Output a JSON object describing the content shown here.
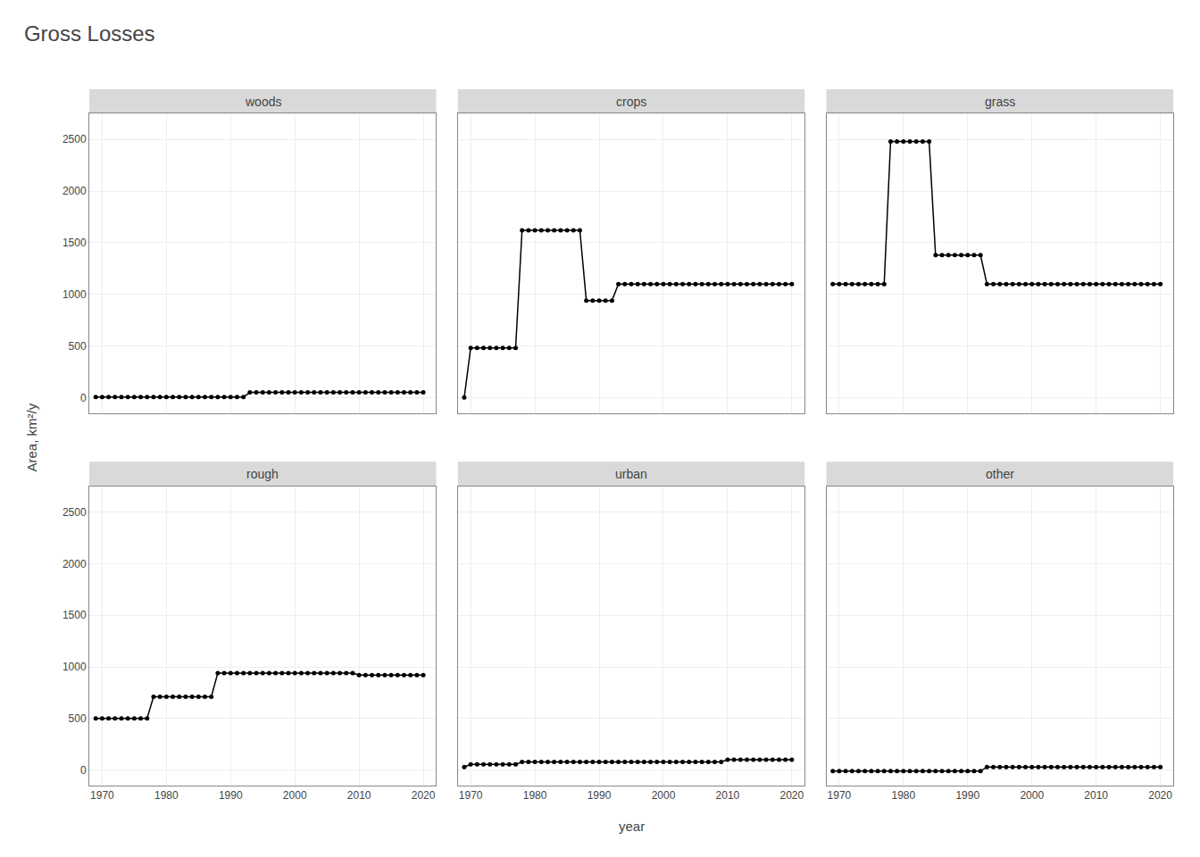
{
  "chart_data": {
    "type": "line",
    "title": "Gross Losses",
    "xlabel": "year",
    "ylabel": "Area, km²/y",
    "x": [
      1969,
      1970,
      1971,
      1972,
      1973,
      1974,
      1975,
      1976,
      1977,
      1978,
      1979,
      1980,
      1981,
      1982,
      1983,
      1984,
      1985,
      1986,
      1987,
      1988,
      1989,
      1990,
      1991,
      1992,
      1993,
      1994,
      1995,
      1996,
      1997,
      1998,
      1999,
      2000,
      2001,
      2002,
      2003,
      2004,
      2005,
      2006,
      2007,
      2008,
      2009,
      2010,
      2011,
      2012,
      2013,
      2014,
      2015,
      2016,
      2017,
      2018,
      2019,
      2020
    ],
    "series": [
      {
        "name": "woods",
        "color": "#000000",
        "marker": "circle",
        "values": [
          5,
          5,
          5,
          5,
          5,
          5,
          5,
          5,
          5,
          5,
          5,
          5,
          5,
          5,
          5,
          5,
          5,
          5,
          5,
          5,
          5,
          5,
          5,
          5,
          50,
          50,
          50,
          50,
          50,
          50,
          50,
          50,
          50,
          50,
          50,
          50,
          50,
          50,
          50,
          50,
          50,
          50,
          50,
          50,
          50,
          50,
          50,
          50,
          50,
          50,
          50,
          50
        ]
      },
      {
        "name": "crops",
        "color": "#000000",
        "marker": "circle",
        "values": [
          0,
          480,
          480,
          480,
          480,
          480,
          480,
          480,
          480,
          1620,
          1620,
          1620,
          1620,
          1620,
          1620,
          1620,
          1620,
          1620,
          1620,
          940,
          940,
          940,
          940,
          940,
          1100,
          1100,
          1100,
          1100,
          1100,
          1100,
          1100,
          1100,
          1100,
          1100,
          1100,
          1100,
          1100,
          1100,
          1100,
          1100,
          1100,
          1100,
          1100,
          1100,
          1100,
          1100,
          1100,
          1100,
          1100,
          1100,
          1100,
          1100
        ]
      },
      {
        "name": "grass",
        "color": "#000000",
        "marker": "circle",
        "values": [
          1100,
          1100,
          1100,
          1100,
          1100,
          1100,
          1100,
          1100,
          1100,
          2480,
          2480,
          2480,
          2480,
          2480,
          2480,
          2480,
          1380,
          1380,
          1380,
          1380,
          1380,
          1380,
          1380,
          1380,
          1100,
          1100,
          1100,
          1100,
          1100,
          1100,
          1100,
          1100,
          1100,
          1100,
          1100,
          1100,
          1100,
          1100,
          1100,
          1100,
          1100,
          1100,
          1100,
          1100,
          1100,
          1100,
          1100,
          1100,
          1100,
          1100,
          1100,
          1100
        ]
      },
      {
        "name": "rough",
        "color": "#000000",
        "marker": "circle",
        "values": [
          500,
          500,
          500,
          500,
          500,
          500,
          500,
          500,
          500,
          710,
          710,
          710,
          710,
          710,
          710,
          710,
          710,
          710,
          710,
          940,
          940,
          940,
          940,
          940,
          940,
          940,
          940,
          940,
          940,
          940,
          940,
          940,
          940,
          940,
          940,
          940,
          940,
          940,
          940,
          940,
          940,
          920,
          920,
          920,
          920,
          920,
          920,
          920,
          920,
          920,
          920,
          920
        ]
      },
      {
        "name": "urban",
        "color": "#000000",
        "marker": "circle",
        "values": [
          30,
          55,
          55,
          55,
          55,
          55,
          55,
          55,
          55,
          80,
          80,
          80,
          80,
          80,
          80,
          80,
          80,
          80,
          80,
          80,
          80,
          80,
          80,
          80,
          80,
          80,
          80,
          80,
          80,
          80,
          80,
          80,
          80,
          80,
          80,
          80,
          80,
          80,
          80,
          80,
          80,
          100,
          100,
          100,
          100,
          100,
          100,
          100,
          100,
          100,
          100,
          100
        ]
      },
      {
        "name": "other",
        "color": "#000000",
        "marker": "circle",
        "values": [
          -10,
          -10,
          -10,
          -10,
          -10,
          -10,
          -10,
          -10,
          -10,
          -10,
          -10,
          -10,
          -10,
          -10,
          -10,
          -10,
          -10,
          -10,
          -10,
          -10,
          -10,
          -10,
          -10,
          -10,
          30,
          30,
          30,
          30,
          30,
          30,
          30,
          30,
          30,
          30,
          30,
          30,
          30,
          30,
          30,
          30,
          30,
          30,
          30,
          30,
          30,
          30,
          30,
          30,
          30,
          30,
          30,
          30
        ]
      }
    ],
    "xlim": [
      1968,
      2022
    ],
    "xticks": [
      1970,
      1980,
      1990,
      2000,
      2010,
      2020
    ],
    "ylim": [
      -150,
      2750
    ],
    "yticks": [
      0,
      500,
      1000,
      1500,
      2000,
      2500
    ],
    "grid": true
  }
}
